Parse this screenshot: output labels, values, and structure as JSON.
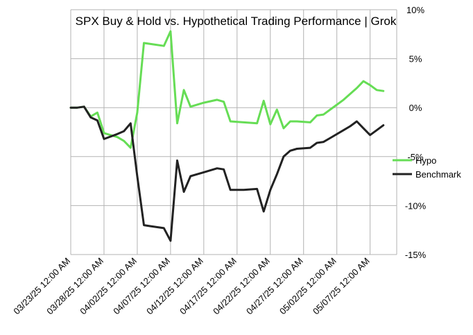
{
  "chart_data": {
    "type": "line",
    "title": "SPX Buy & Hold vs. Hypothetical Trading Performance | Grok",
    "xlabel": "",
    "ylabel": "",
    "ylim": [
      -15,
      10
    ],
    "y_ticks": [
      {
        "value": 10,
        "label": "10%"
      },
      {
        "value": 5,
        "label": "5%"
      },
      {
        "value": 0,
        "label": "0%"
      },
      {
        "value": -5,
        "label": "-5%"
      },
      {
        "value": -10,
        "label": "-10%"
      },
      {
        "value": -15,
        "label": "-15%"
      }
    ],
    "xlim": [
      0,
      49
    ],
    "x_ticks": [
      {
        "value": 0,
        "label": "03/23/25 12:00 AM"
      },
      {
        "value": 5,
        "label": "03/28/25 12:00 AM"
      },
      {
        "value": 10,
        "label": "04/02/25 12:00 AM"
      },
      {
        "value": 15,
        "label": "04/07/25 12:00 AM"
      },
      {
        "value": 20,
        "label": "04/12/25 12:00 AM"
      },
      {
        "value": 25,
        "label": "04/17/25 12:00 AM"
      },
      {
        "value": 30,
        "label": "04/22/25 12:00 AM"
      },
      {
        "value": 35,
        "label": "04/27/25 12:00 AM"
      },
      {
        "value": 40,
        "label": "05/02/25 12:00 AM"
      },
      {
        "value": 45,
        "label": "05/07/25 12:00 AM"
      }
    ],
    "grid": true,
    "legend_position": "right",
    "series": [
      {
        "name": "Hypo",
        "color": "#66dd55",
        "x": [
          0,
          1,
          2,
          3,
          4,
          5,
          7,
          8,
          9,
          10,
          11,
          12,
          14,
          15,
          16,
          17,
          18,
          20,
          22,
          23,
          24,
          26,
          28,
          29,
          30,
          31,
          32,
          33,
          34,
          36,
          37,
          38,
          39,
          41,
          42,
          43,
          44,
          45,
          46,
          47
        ],
        "values": [
          0.0,
          0.0,
          0.1,
          -0.9,
          -0.5,
          -2.6,
          -3.0,
          -3.4,
          -4.1,
          -0.5,
          6.6,
          6.5,
          6.3,
          7.8,
          -1.6,
          1.8,
          0.1,
          0.5,
          0.8,
          0.6,
          -1.4,
          -1.5,
          -1.6,
          0.7,
          -1.7,
          -0.2,
          -2.1,
          -1.4,
          -1.4,
          -1.5,
          -0.8,
          -0.7,
          -0.2,
          0.8,
          1.4,
          2.0,
          2.7,
          2.3,
          1.8,
          1.7
        ]
      },
      {
        "name": "Benchmark",
        "color": "#222222",
        "x": [
          0,
          1,
          2,
          3,
          4,
          5,
          7,
          8,
          9,
          10,
          11,
          12,
          14,
          15,
          16,
          17,
          18,
          20,
          22,
          23,
          24,
          26,
          28,
          29,
          30,
          31,
          32,
          33,
          34,
          36,
          37,
          38,
          39,
          41,
          42,
          43,
          44,
          45,
          46,
          47
        ],
        "values": [
          0.0,
          0.0,
          0.1,
          -1.0,
          -1.3,
          -3.2,
          -2.7,
          -2.4,
          -1.6,
          -7.0,
          -12.0,
          -12.1,
          -12.3,
          -13.6,
          -5.4,
          -8.6,
          -7.0,
          -6.6,
          -6.2,
          -6.3,
          -8.4,
          -8.4,
          -8.3,
          -10.6,
          -8.4,
          -6.8,
          -5.0,
          -4.4,
          -4.2,
          -4.1,
          -3.6,
          -3.5,
          -3.1,
          -2.3,
          -1.9,
          -1.4,
          -2.1,
          -2.8,
          -2.3,
          -1.8
        ]
      }
    ]
  }
}
